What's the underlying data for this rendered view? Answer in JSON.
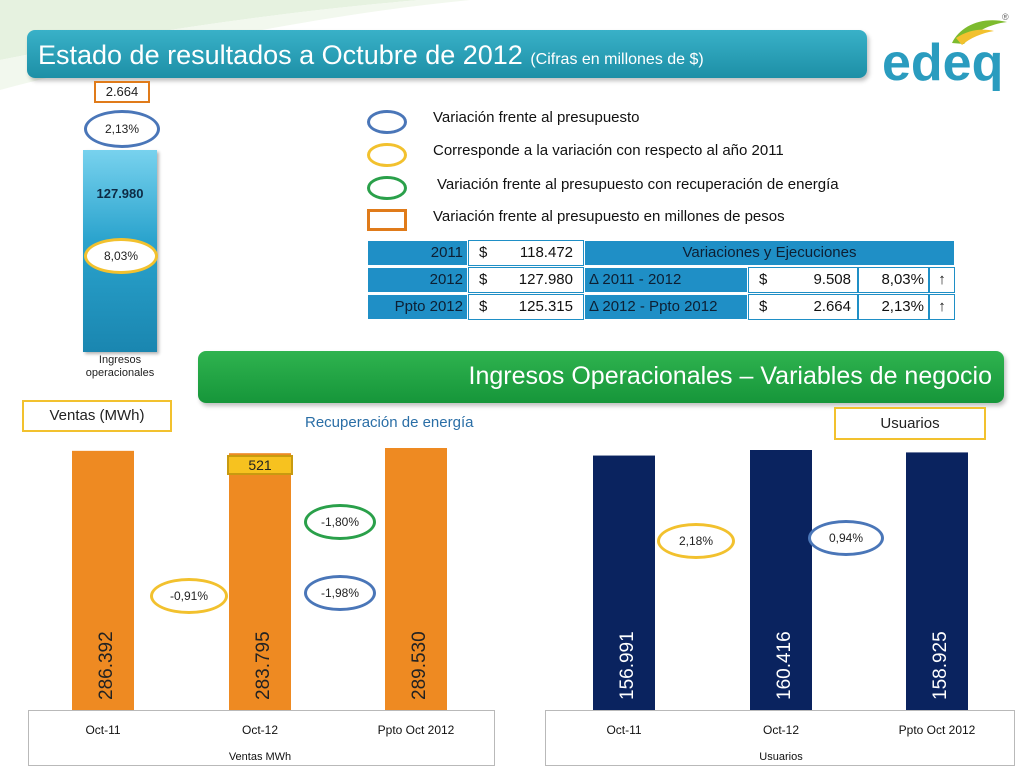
{
  "header": {
    "title": "Estado de resultados a Octubre de 2012",
    "subtitle": "(Cifras en millones de $)"
  },
  "logo": {
    "text": "edeq",
    "registered": "®"
  },
  "ingresos": {
    "value": "127.980",
    "variation_millions": "2.664",
    "variation_budget": "2,13%",
    "variation_year": "8,03%",
    "label": "Ingresos operacionales"
  },
  "legend": [
    "Variación frente al presupuesto",
    "Corresponde a la variación con respecto al año 2011",
    "Variación frente al presupuesto con recuperación de energía",
    "Variación frente al presupuesto en millones de pesos"
  ],
  "summary_table": {
    "header": "Variaciones y Ejecuciones",
    "rows": [
      {
        "label": "2011",
        "currency": "$",
        "value": "118.472"
      },
      {
        "label": "2012",
        "currency": "$",
        "value": "127.980",
        "delta_label": "Δ 2011 - 2012",
        "delta_currency": "$",
        "delta_value": "9.508",
        "delta_pct": "8,03%",
        "arrow": "↑"
      },
      {
        "label": "Ppto 2012",
        "currency": "$",
        "value": "125.315",
        "delta_label": "Δ 2012 - Ppto 2012",
        "delta_currency": "$",
        "delta_value": "2.664",
        "delta_pct": "2,13%",
        "arrow": "↑"
      }
    ]
  },
  "section_title": "Ingresos Operacionales – Variables de negocio",
  "labels": {
    "ventas": "Ventas (MWh)",
    "recuperacion": "Recuperación de energía",
    "usuarios": "Usuarios"
  },
  "annotations": {
    "ventas_yellow": "-0,91%",
    "ventas_green": "-1,80%",
    "ventas_blue": "-1,98%",
    "ventas_recup": "521",
    "usuarios_yellow": "2,18%",
    "usuarios_blue": "0,94%"
  },
  "colors": {
    "ventas_bar": "#ee8a22",
    "usuarios_bar": "#0a235f",
    "title_bar": "#2aa3bf",
    "section_bar": "#22a545"
  },
  "chart_data": [
    {
      "type": "bar",
      "categories": [
        "Oct-11",
        "Oct-12",
        "Ppto Oct 2012"
      ],
      "values": [
        286392,
        283795,
        289530
      ],
      "value_labels": [
        "286.392",
        "283.795",
        "289.530"
      ],
      "xlabel": "Ventas MWh",
      "color": "#ee8a22"
    },
    {
      "type": "bar",
      "categories": [
        "Oct-11",
        "Oct-12",
        "Ppto Oct 2012"
      ],
      "values": [
        156991,
        160416,
        158925
      ],
      "value_labels": [
        "156.991",
        "160.416",
        "158.925"
      ],
      "xlabel": "Usuarios",
      "color": "#0a235f"
    }
  ]
}
